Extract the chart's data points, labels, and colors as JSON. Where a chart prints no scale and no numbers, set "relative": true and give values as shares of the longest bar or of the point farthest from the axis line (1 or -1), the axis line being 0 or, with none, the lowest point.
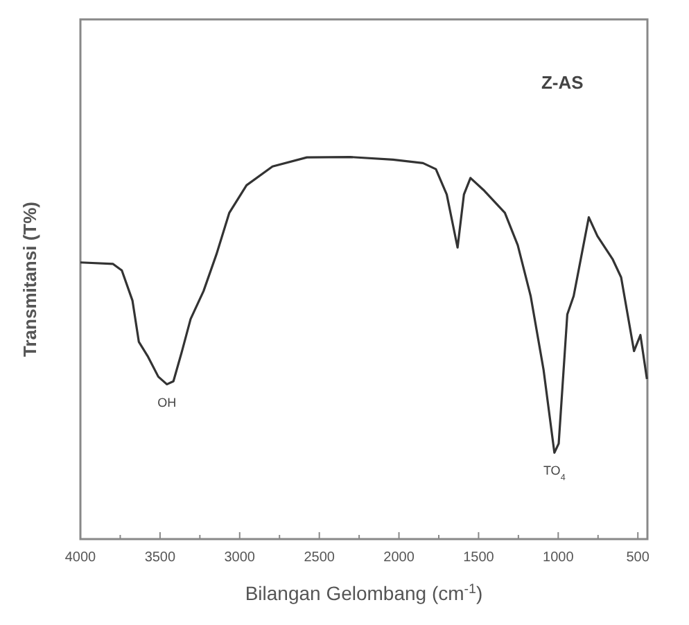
{
  "chart_data": {
    "type": "line",
    "relative": true,
    "xlabel": "Bilangan Gelombang (cm$^{-1}$)",
    "ylabel": "Transmitansi (T%)",
    "line_style": "solid",
    "marker": "none",
    "grid": false,
    "xlim": [
      4000,
      440
    ],
    "xticks": [
      4000,
      {
        "value": 3750,
        "label": null
      },
      3500,
      {
        "value": 3250,
        "label": null
      },
      3000,
      {
        "value": 2750,
        "label": null
      },
      2500,
      {
        "value": 2250,
        "label": null
      },
      2000,
      {
        "value": 1750,
        "label": null
      },
      1500,
      {
        "value": 1250,
        "label": null
      },
      1000,
      {
        "value": 750,
        "label": null
      },
      500
    ],
    "annotations": [
      "Z-AS",
      {
        "text": "OH",
        "x": 3457,
        "y": 0.405
      },
      {
        "text": "TO$_{4}$",
        "x": 1024,
        "y": 0.226
      }
    ],
    "series": [
      {
        "color": "#333333",
        "x": [
          4000,
          3795,
          3740,
          3673,
          3633,
          3578,
          3511,
          3457,
          3416,
          3362,
          3308,
          3227,
          3146,
          3065,
          2957,
          2794,
          2578,
          2308,
          2038,
          1849,
          1768,
          1700,
          1632,
          1592,
          1551,
          1470,
          1335,
          1254,
          1173,
          1092,
          1024,
          997,
          943,
          903,
          808,
          754,
          659,
          605,
          524,
          484,
          443
        ],
        "values": [
          0.724,
          0.72,
          0.703,
          0.624,
          0.516,
          0.479,
          0.425,
          0.405,
          0.413,
          0.492,
          0.576,
          0.649,
          0.745,
          0.854,
          0.926,
          0.975,
          0.999,
          1.0,
          0.993,
          0.984,
          0.968,
          0.902,
          0.763,
          0.902,
          0.945,
          0.914,
          0.854,
          0.769,
          0.636,
          0.443,
          0.226,
          0.25,
          0.588,
          0.636,
          0.842,
          0.793,
          0.733,
          0.685,
          0.492,
          0.534,
          0.419
        ]
      }
    ]
  }
}
